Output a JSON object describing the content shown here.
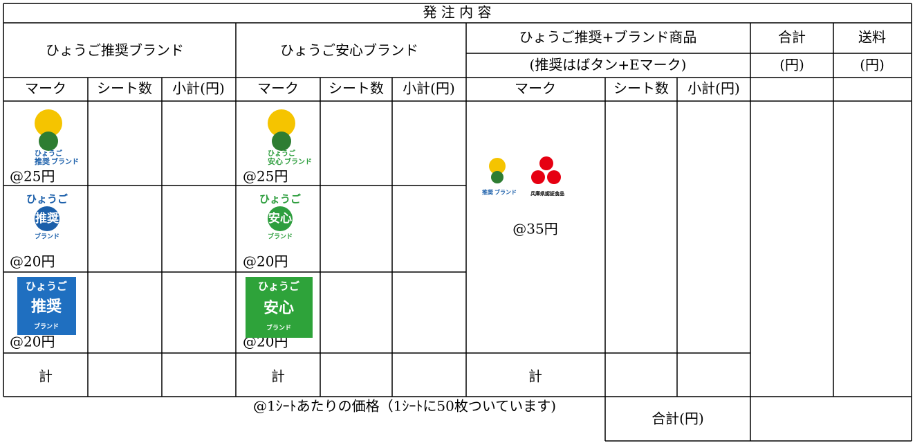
{
  "table": {
    "title": "発 注 内 容",
    "groups": [
      "ひょうご推奨ブランド",
      "ひょうご安心ブランド",
      "ひょうご推奨+ブランド商品",
      "合計",
      "送料"
    ],
    "group_notes": [
      "(推奨はばタン+Eマーク)",
      "(円)",
      "(円)"
    ],
    "columns": [
      "マーク",
      "シート数",
      "小計(円)",
      "マーク",
      "シート数",
      "小計(円)",
      "マーク",
      "シート数",
      "小計(円)"
    ],
    "prices": [
      [
        "@25円",
        "@20円",
        "@20円"
      ],
      [
        "@25円",
        "@20円",
        "@20円"
      ],
      [
        "@35円"
      ]
    ],
    "total_labels": [
      "計",
      "計",
      "計"
    ],
    "footnote": "@1ｼｰﾄあたりの価格（1ｼｰﾄに50枚ついています)",
    "grand_total_label": "合計(円)"
  },
  "logos": {
    "hyogo": "ひょうご",
    "suisho": "推奨",
    "anshin": "安心",
    "brand": "ブランド",
    "ninsho": "兵庫県認証食品"
  }
}
